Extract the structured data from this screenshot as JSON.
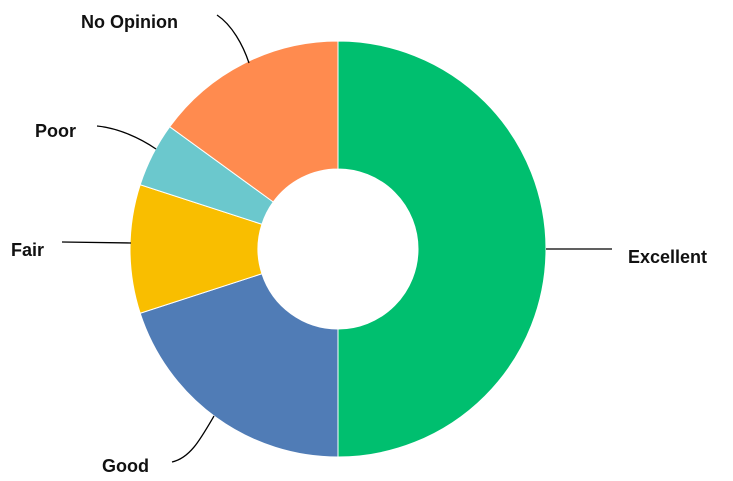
{
  "chart_data": {
    "type": "pie",
    "style": "donut",
    "categories": [
      "Excellent",
      "Good",
      "Fair",
      "Poor",
      "No Opinion"
    ],
    "values": [
      50,
      20,
      10,
      5,
      15
    ],
    "unit": "%",
    "colors": [
      "#00BF6F",
      "#507CB6",
      "#F9BE00",
      "#6BC8CD",
      "#FF8B4F"
    ],
    "start_angle": "12 o'clock",
    "direction": "clockwise",
    "legend": "none",
    "labels": "outside with leader lines"
  }
}
